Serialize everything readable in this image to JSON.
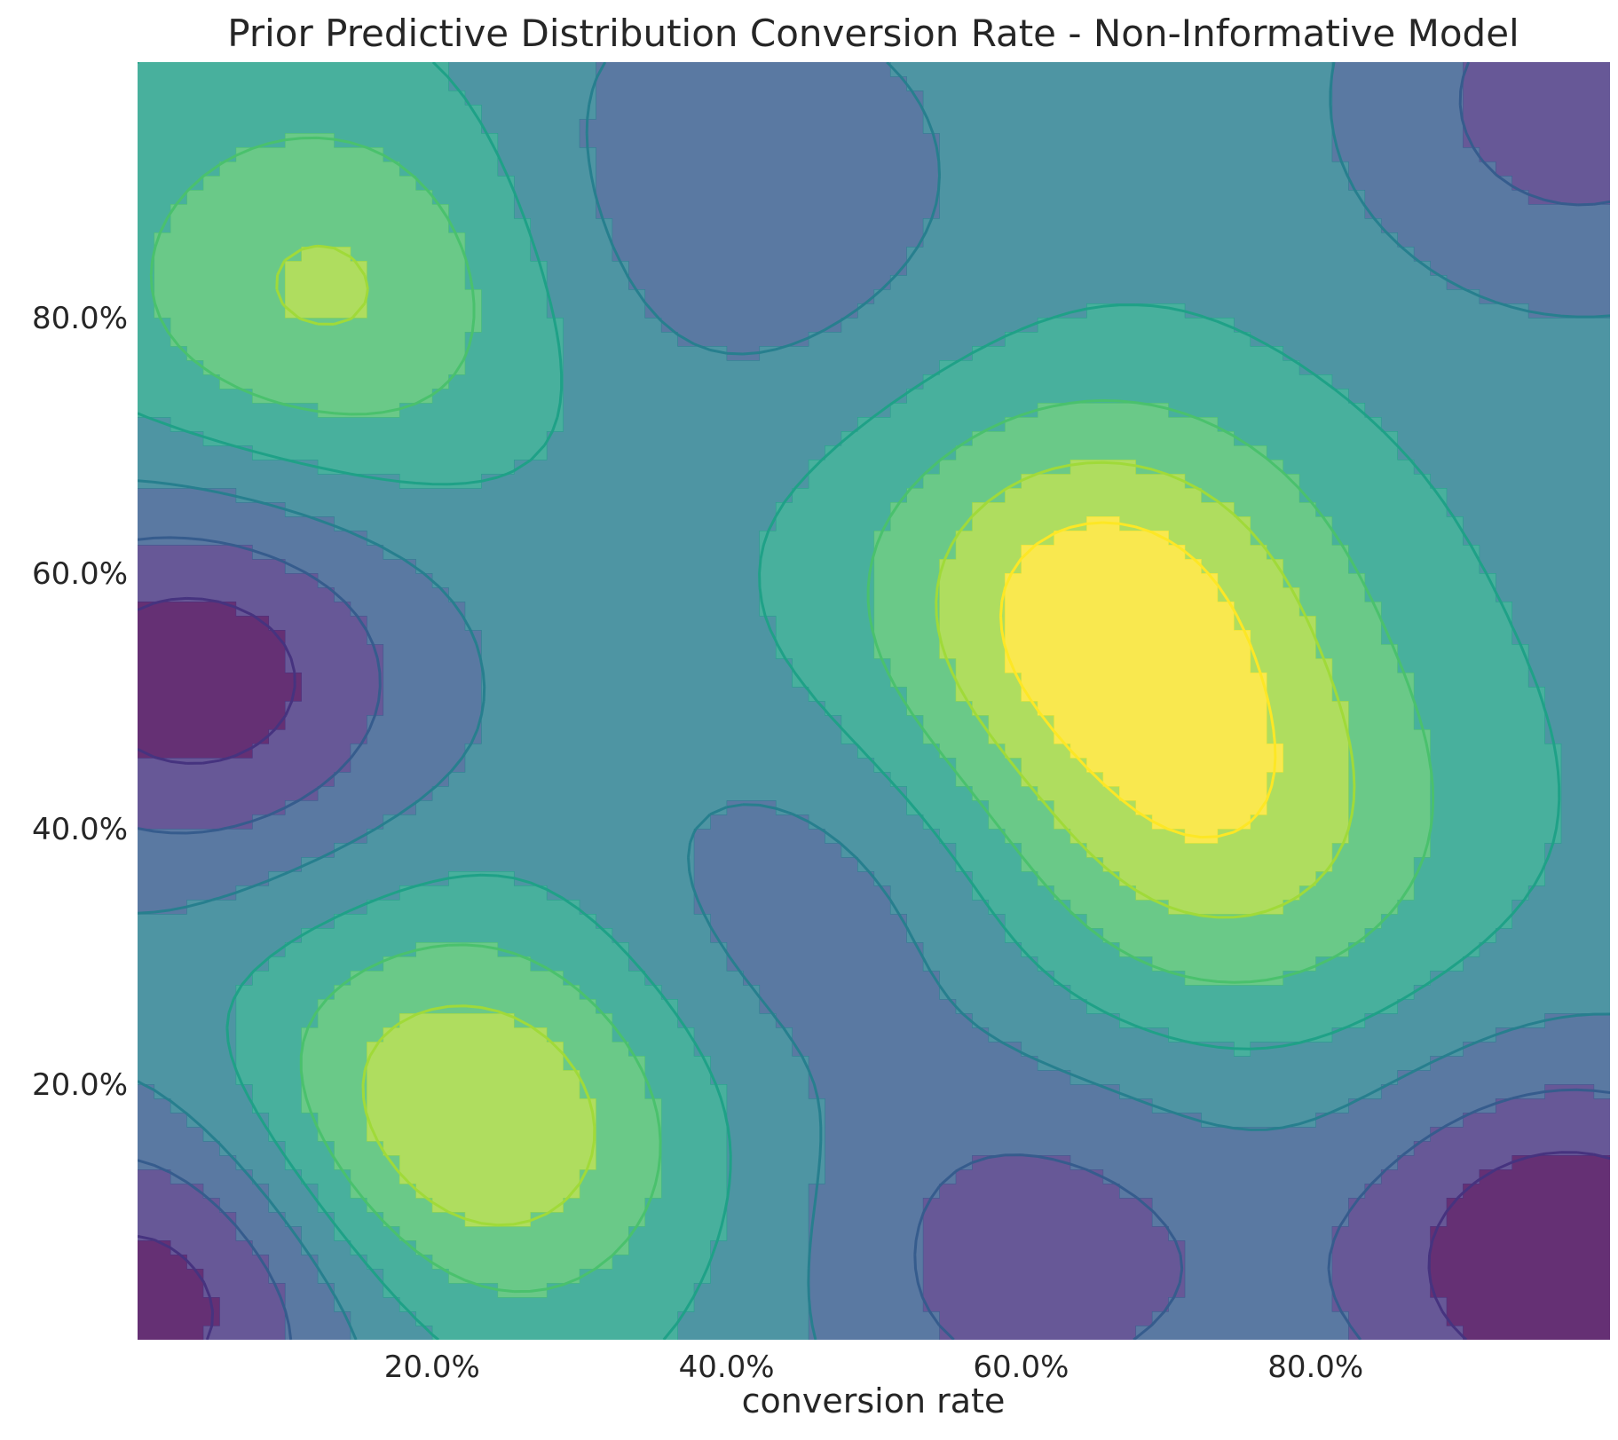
{
  "chart_data": {
    "type": "heatmap",
    "subtype": "filled-contour",
    "title": "Prior Predictive Distribution Conversion Rate - Non-Informative Model",
    "xlabel": "conversion rate",
    "ylabel": "",
    "xlim": [
      0.0,
      1.0
    ],
    "ylim": [
      0.0,
      1.0
    ],
    "x_ticks": [
      0.2,
      0.4,
      0.6,
      0.8
    ],
    "x_tick_labels": [
      "20.0%",
      "40.0%",
      "60.0%",
      "80.0%"
    ],
    "y_ticks": [
      0.2,
      0.4,
      0.6,
      0.8
    ],
    "y_tick_labels": [
      "20.0%",
      "40.0%",
      "60.0%",
      "80.0%"
    ],
    "grid": false,
    "colormap": "viridis",
    "n_levels": 8,
    "level_colors": [
      "#440154",
      "#46337f",
      "#365c8d",
      "#277f8e",
      "#1fa187",
      "#4ac16d",
      "#a0da39",
      "#fde725"
    ],
    "alpha": 0.8,
    "density_field": {
      "description_of_shape": "relative density bumps (peaks and troughs) in data units",
      "bumps": [
        {
          "x": 0.22,
          "y": 0.17,
          "amp": 1.0
        },
        {
          "x": 0.65,
          "y": 0.58,
          "amp": 1.0
        },
        {
          "x": 0.74,
          "y": 0.4,
          "amp": 0.75
        },
        {
          "x": 0.13,
          "y": 0.82,
          "amp": 0.7
        },
        {
          "x": 0.04,
          "y": 0.52,
          "amp": -0.9
        },
        {
          "x": 0.97,
          "y": 0.06,
          "amp": -1.0
        },
        {
          "x": 0.02,
          "y": 0.04,
          "amp": -0.9
        },
        {
          "x": 0.61,
          "y": 0.06,
          "amp": -0.6
        },
        {
          "x": 0.98,
          "y": 0.97,
          "amp": -0.6
        },
        {
          "x": 0.45,
          "y": 0.33,
          "amp": -0.35
        },
        {
          "x": 0.4,
          "y": 0.9,
          "amp": -0.45
        }
      ]
    }
  }
}
